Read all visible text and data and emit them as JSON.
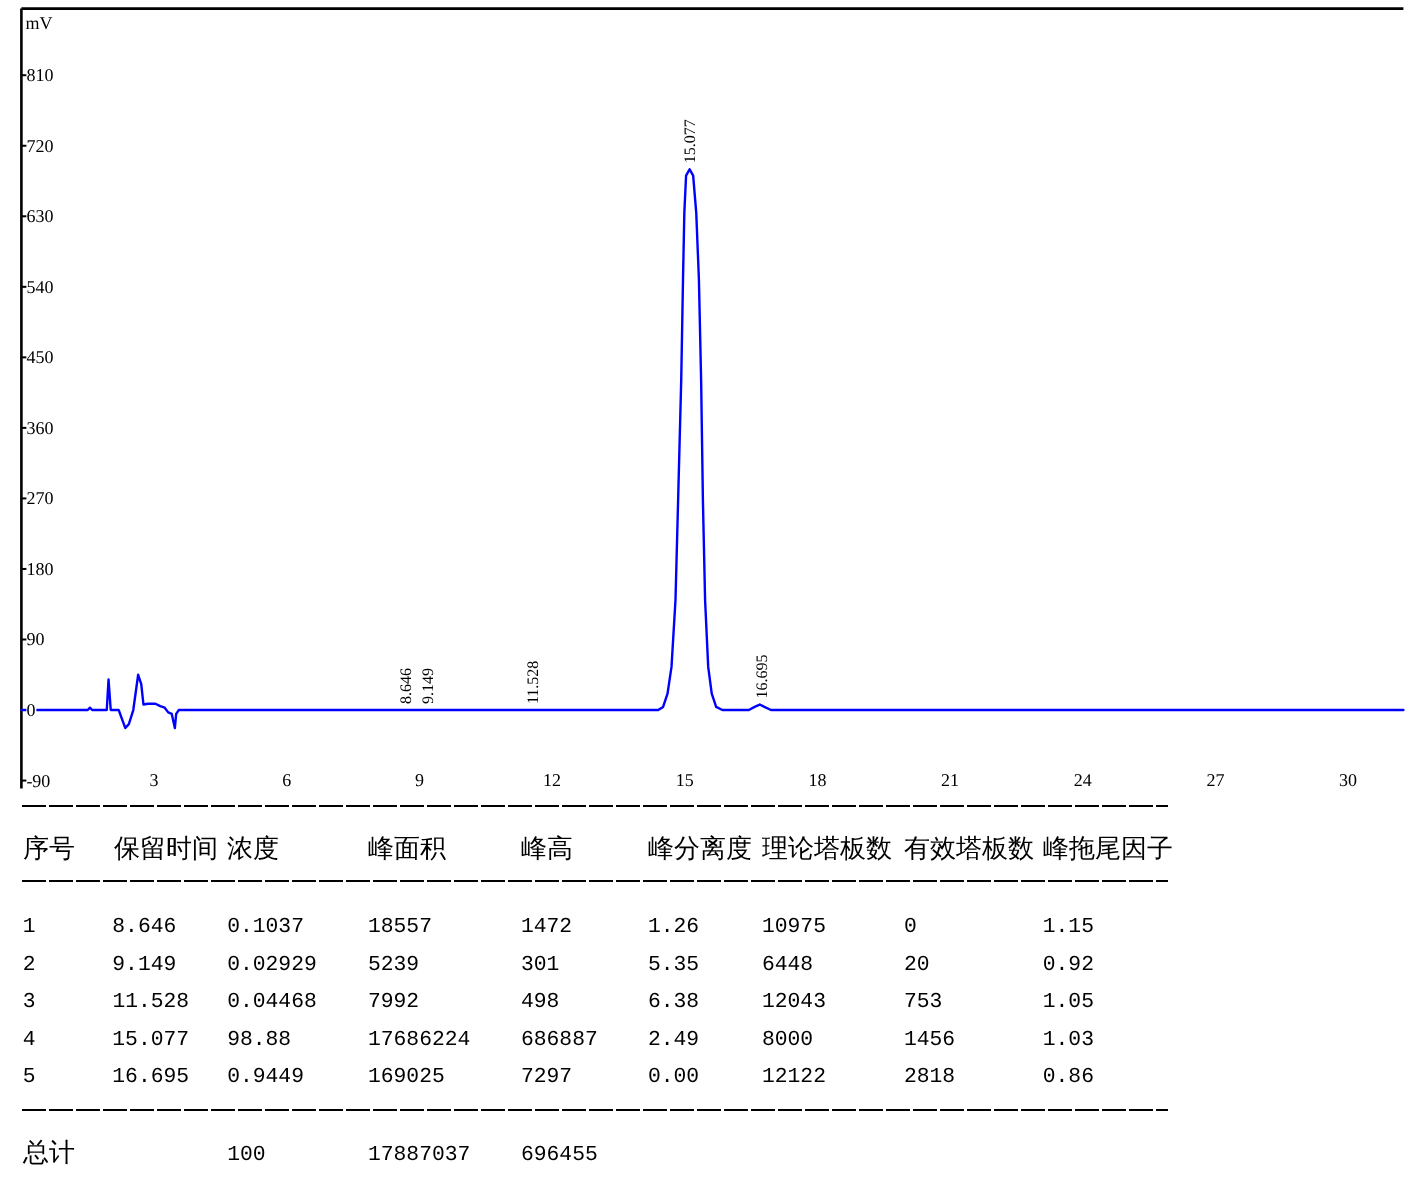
{
  "chart_data": [
    {
      "type": "line",
      "ylabel": "mV",
      "color": "#0000ff",
      "x": [
        0,
        1.5,
        1.55,
        1.6,
        1.93,
        1.97,
        2.02,
        2.2,
        2.35,
        2.43,
        2.53,
        2.64,
        2.71,
        2.76,
        2.86,
        3.03,
        3.14,
        3.24,
        3.32,
        3.4,
        3.47,
        3.5,
        3.56,
        14.4,
        14.51,
        14.61,
        14.7,
        14.79,
        14.85,
        14.92,
        14.96,
        14.99,
        15.03,
        15.11,
        15.19,
        15.26,
        15.32,
        15.37,
        15.41,
        15.46,
        15.53,
        15.61,
        15.71,
        15.85,
        16.45,
        16.58,
        16.695,
        16.8,
        16.95,
        31.25
      ],
      "values": [
        0,
        0,
        3,
        0,
        0,
        39,
        0,
        0,
        -23,
        -18,
        0,
        45,
        33,
        7,
        8,
        8,
        5,
        3,
        -3,
        -5,
        -23,
        -5,
        0,
        0,
        4,
        21,
        55,
        140,
        268,
        421,
        549,
        634,
        682,
        690,
        682,
        634,
        549,
        421,
        268,
        140,
        55,
        21,
        4,
        0,
        0,
        4,
        7,
        4,
        0,
        0
      ],
      "xlim": [
        0,
        31.25
      ],
      "ylim": [
        -100,
        895
      ],
      "xticks": [
        3,
        6,
        9,
        12,
        15,
        18,
        21,
        24,
        27,
        30
      ],
      "yticks": [
        -90,
        0,
        90,
        180,
        270,
        360,
        450,
        540,
        630,
        720,
        810
      ],
      "annotations": [
        {
          "text": "8.646",
          "x": 8.646,
          "y": 0
        },
        {
          "text": "9.149",
          "x": 9.149,
          "y": 0
        },
        {
          "text": "11.528",
          "x": 11.528,
          "y": 0
        },
        {
          "text": "15.077",
          "x": 15.077,
          "y": 690
        },
        {
          "text": "16.695",
          "x": 16.695,
          "y": 7
        }
      ]
    },
    {
      "type": "other",
      "ylabel": "序号",
      "y_categories": [
        "1",
        "2",
        "3",
        "4",
        "5",
        "总计"
      ],
      "categories": [
        "保留时间",
        "浓度",
        "峰面积",
        "峰高",
        "峰分离度",
        "理论塔板数",
        "有效塔板数",
        "峰拖尾因子"
      ],
      "cell_labels": [
        [
          "8.646",
          "0.1037",
          "18557",
          "1472",
          "1.26",
          "10975",
          "0",
          "1.15"
        ],
        [
          "9.149",
          "0.02929",
          "5239",
          "301",
          "5.35",
          "6448",
          "20",
          "0.92"
        ],
        [
          "11.528",
          "0.04468",
          "7992",
          "498",
          "6.38",
          "12043",
          "753",
          "1.05"
        ],
        [
          "15.077",
          "98.88",
          "17686224",
          "686887",
          "2.49",
          "8000",
          "1456",
          "1.03"
        ],
        [
          "16.695",
          "0.9449",
          "169025",
          "7297",
          "0.00",
          "12122",
          "2818",
          "0.86"
        ],
        [
          null,
          "100",
          "17887037",
          "696455",
          null,
          null,
          null,
          null
        ]
      ]
    }
  ]
}
